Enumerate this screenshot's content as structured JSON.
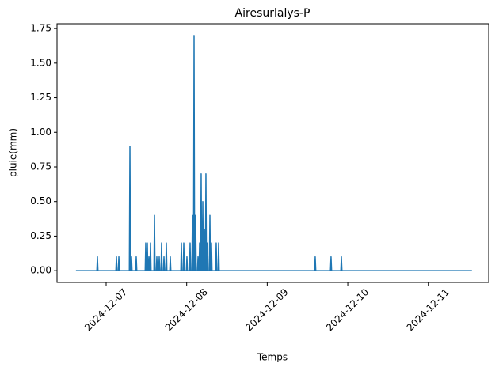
{
  "chart_data": {
    "type": "line",
    "title": "Airesurlalys-P",
    "x_label": "Temps",
    "y_label": "pluie(mm)",
    "series": [
      {
        "name": "pluie",
        "color": "#1f77b4",
        "x": [
          "2024-12-06T15:00",
          "2024-12-06T21:14",
          "2024-12-06T21:24",
          "2024-12-06T21:34",
          "2024-12-07T02:54",
          "2024-12-07T03:04",
          "2024-12-07T03:14",
          "2024-12-07T03:37",
          "2024-12-07T03:47",
          "2024-12-07T03:57",
          "2024-12-07T06:55",
          "2024-12-07T07:05",
          "2024-12-07T07:15",
          "2024-12-07T07:23",
          "2024-12-07T07:33",
          "2024-12-07T07:43",
          "2024-12-07T08:48",
          "2024-12-07T08:58",
          "2024-12-07T09:08",
          "2024-12-07T11:38",
          "2024-12-07T11:48",
          "2024-12-07T11:58",
          "2024-12-07T12:06",
          "2024-12-07T12:16",
          "2024-12-07T12:26",
          "2024-12-07T12:35",
          "2024-12-07T12:45",
          "2024-12-07T12:55",
          "2024-12-07T13:03",
          "2024-12-07T13:13",
          "2024-12-07T13:23",
          "2024-12-07T14:14",
          "2024-12-07T14:24",
          "2024-12-07T14:34",
          "2024-12-07T14:56",
          "2024-12-07T15:06",
          "2024-12-07T15:16",
          "2024-12-07T15:39",
          "2024-12-07T15:49",
          "2024-12-07T15:59",
          "2024-12-07T16:21",
          "2024-12-07T16:31",
          "2024-12-07T16:41",
          "2024-12-07T17:04",
          "2024-12-07T17:14",
          "2024-12-07T17:24",
          "2024-12-07T17:46",
          "2024-12-07T17:56",
          "2024-12-07T18:06",
          "2024-12-07T18:57",
          "2024-12-07T19:07",
          "2024-12-07T19:17",
          "2024-12-07T22:15",
          "2024-12-07T22:25",
          "2024-12-07T22:35",
          "2024-12-07T22:58",
          "2024-12-07T23:08",
          "2024-12-07T23:18",
          "2024-12-07T23:54",
          "2024-12-08T00:04",
          "2024-12-08T00:14",
          "2024-12-08T00:51",
          "2024-12-08T01:01",
          "2024-12-08T01:11",
          "2024-12-08T01:33",
          "2024-12-08T01:43",
          "2024-12-08T01:53",
          "2024-12-08T02:02",
          "2024-12-08T02:12",
          "2024-12-08T02:22",
          "2024-12-08T02:30",
          "2024-12-08T02:40",
          "2024-12-08T02:50",
          "2024-12-08T03:13",
          "2024-12-08T03:23",
          "2024-12-08T03:33",
          "2024-12-08T03:41",
          "2024-12-08T03:51",
          "2024-12-08T04:01",
          "2024-12-08T04:09",
          "2024-12-08T04:19",
          "2024-12-08T04:29",
          "2024-12-08T04:38",
          "2024-12-08T04:48",
          "2024-12-08T04:58",
          "2024-12-08T05:06",
          "2024-12-08T05:16",
          "2024-12-08T05:26",
          "2024-12-08T05:34",
          "2024-12-08T05:44",
          "2024-12-08T05:54",
          "2024-12-08T06:02",
          "2024-12-08T06:12",
          "2024-12-08T06:22",
          "2024-12-08T06:45",
          "2024-12-08T06:55",
          "2024-12-08T07:05",
          "2024-12-08T07:13",
          "2024-12-08T07:23",
          "2024-12-08T07:33",
          "2024-12-08T08:38",
          "2024-12-08T08:48",
          "2024-12-08T08:58",
          "2024-12-08T09:21",
          "2024-12-08T09:31",
          "2024-12-08T09:41",
          "2024-12-09T14:08",
          "2024-12-09T14:18",
          "2024-12-09T14:28",
          "2024-12-09T18:51",
          "2024-12-09T19:01",
          "2024-12-09T19:11",
          "2024-12-09T21:56",
          "2024-12-09T22:06",
          "2024-12-09T22:16",
          "2024-12-11T13:00"
        ],
        "values": [
          0,
          0,
          0.1,
          0,
          0,
          0.1,
          0,
          0,
          0.1,
          0,
          0,
          0.9,
          0,
          0,
          0.1,
          0,
          0,
          0.1,
          0,
          0,
          0.2,
          0,
          0,
          0.2,
          0,
          0,
          0.1,
          0,
          0,
          0.2,
          0,
          0,
          0.4,
          0,
          0,
          0.1,
          0,
          0,
          0.1,
          0,
          0,
          0.2,
          0,
          0,
          0.1,
          0,
          0,
          0.2,
          0,
          0,
          0.1,
          0,
          0,
          0.2,
          0,
          0,
          0.2,
          0,
          0,
          0.1,
          0,
          0,
          0.2,
          0,
          0,
          0.4,
          0,
          0,
          1.7,
          0,
          0,
          0.4,
          0,
          0,
          0.1,
          0,
          0,
          0.2,
          0,
          0,
          0.7,
          0,
          0,
          0.5,
          0,
          0,
          0.3,
          0,
          0,
          0.7,
          0,
          0,
          0.2,
          0,
          0,
          0.4,
          0,
          0,
          0.2,
          0,
          0,
          0.2,
          0,
          0,
          0.2,
          0,
          0,
          0.1,
          0,
          0,
          0.1,
          0,
          0,
          0.1,
          0,
          0
        ]
      }
    ],
    "xlim": [
      "2024-12-06T09:22",
      "2024-12-11T18:00"
    ],
    "xticks": [
      "2024-12-07",
      "2024-12-08",
      "2024-12-09",
      "2024-12-10",
      "2024-12-11"
    ],
    "ylim": [
      -0.085,
      1.785
    ],
    "yticks": [
      {
        "value": 0,
        "label": "0.00"
      },
      {
        "value": 0.25,
        "label": "0.25"
      },
      {
        "value": 0.5,
        "label": "0.50"
      },
      {
        "value": 0.75,
        "label": "0.75"
      },
      {
        "value": 1,
        "label": "1.00"
      },
      {
        "value": 1.25,
        "label": "1.25"
      },
      {
        "value": 1.5,
        "label": "1.50"
      },
      {
        "value": 1.75,
        "label": "1.75"
      }
    ],
    "grid": false
  }
}
